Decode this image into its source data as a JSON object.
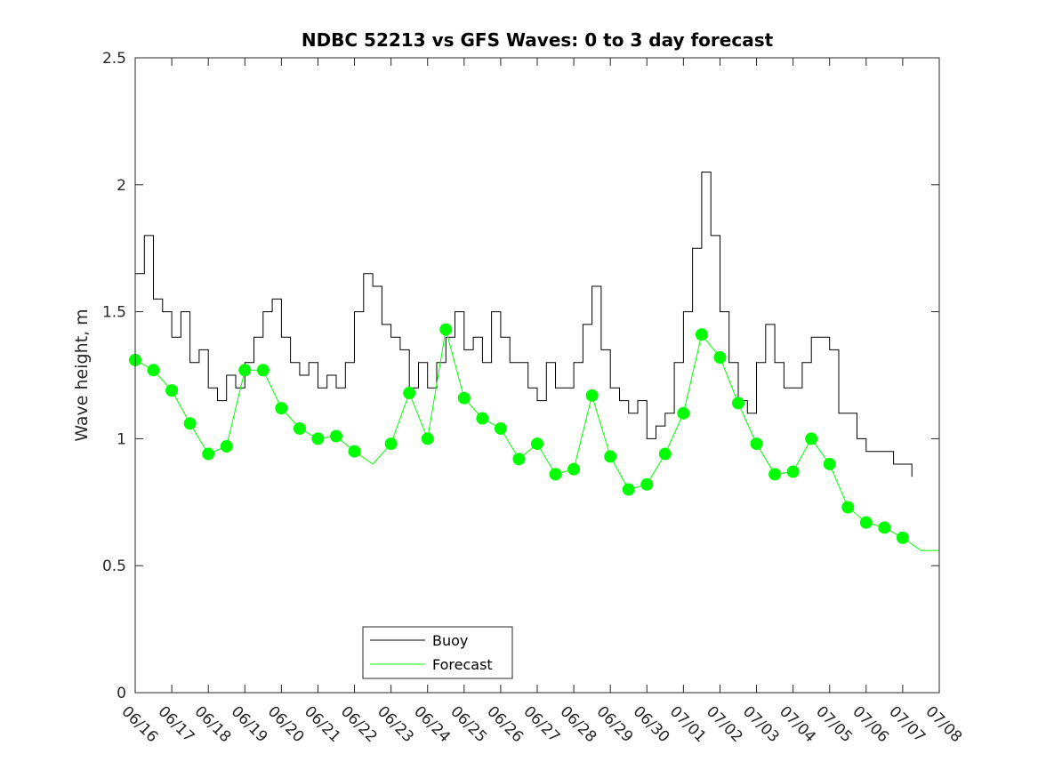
{
  "chart_data": {
    "type": "line",
    "title": "NDBC 52213 vs GFS Waves: 0 to 3 day forecast",
    "xlabel": "",
    "ylabel": "Wave height, m",
    "x_range_days": [
      "06/16",
      "07/08"
    ],
    "ylim": [
      0,
      2.5
    ],
    "yticks": [
      0,
      0.5,
      1,
      1.5,
      2,
      2.5
    ],
    "ytick_labels": [
      "0",
      "0.5",
      "1",
      "1.5",
      "2",
      "2.5"
    ],
    "xtick_labels": [
      "06/16",
      "06/17",
      "06/18",
      "06/19",
      "06/20",
      "06/21",
      "06/22",
      "06/23",
      "06/24",
      "06/25",
      "06/26",
      "06/27",
      "06/28",
      "06/29",
      "06/30",
      "07/01",
      "07/02",
      "07/03",
      "07/04",
      "07/05",
      "07/06",
      "07/07",
      "07/08"
    ],
    "grid": false,
    "legend_position": "bottom-left",
    "colors": {
      "buoy": "#000000",
      "forecast": "#00ff00"
    },
    "series": [
      {
        "name": "Buoy",
        "kind": "line",
        "x": [
          "06/16 00:00",
          "06/16 06:00",
          "06/16 12:00",
          "06/16 18:00",
          "06/17 00:00",
          "06/17 06:00",
          "06/17 12:00",
          "06/17 18:00",
          "06/18 00:00",
          "06/18 06:00",
          "06/18 12:00",
          "06/18 18:00",
          "06/19 00:00",
          "06/19 06:00",
          "06/19 12:00",
          "06/19 18:00",
          "06/20 00:00",
          "06/20 06:00",
          "06/20 12:00",
          "06/20 18:00",
          "06/21 00:00",
          "06/21 06:00",
          "06/21 12:00",
          "06/21 18:00",
          "06/22 00:00",
          "06/22 06:00",
          "06/22 12:00",
          "06/22 18:00",
          "06/23 00:00",
          "06/23 06:00",
          "06/23 12:00",
          "06/23 18:00",
          "06/24 00:00",
          "06/24 06:00",
          "06/24 12:00",
          "06/24 18:00",
          "06/25 00:00",
          "06/25 06:00",
          "06/25 12:00",
          "06/25 18:00",
          "06/26 00:00",
          "06/26 06:00",
          "06/26 12:00",
          "06/26 18:00",
          "06/27 00:00",
          "06/27 06:00",
          "06/27 12:00",
          "06/27 18:00",
          "06/28 00:00",
          "06/28 06:00",
          "06/28 12:00",
          "06/28 18:00",
          "06/29 00:00",
          "06/29 06:00",
          "06/29 12:00",
          "06/29 18:00",
          "06/30 00:00",
          "06/30 06:00",
          "06/30 12:00",
          "06/30 18:00",
          "07/01 00:00",
          "07/01 06:00",
          "07/01 12:00",
          "07/01 18:00",
          "07/02 00:00",
          "07/02 06:00",
          "07/02 12:00",
          "07/02 18:00",
          "07/03 00:00",
          "07/03 06:00",
          "07/03 12:00",
          "07/03 18:00",
          "07/04 00:00",
          "07/04 06:00",
          "07/04 12:00",
          "07/04 18:00",
          "07/05 00:00",
          "07/05 06:00",
          "07/05 12:00",
          "07/05 18:00",
          "07/06 00:00",
          "07/06 06:00",
          "07/06 12:00",
          "07/06 18:00",
          "07/07 00:00",
          "07/07 06:00"
        ],
        "y": [
          1.65,
          1.8,
          1.55,
          1.5,
          1.4,
          1.5,
          1.3,
          1.35,
          1.2,
          1.15,
          1.25,
          1.2,
          1.3,
          1.4,
          1.5,
          1.55,
          1.4,
          1.3,
          1.25,
          1.3,
          1.2,
          1.25,
          1.2,
          1.3,
          1.5,
          1.65,
          1.6,
          1.45,
          1.4,
          1.35,
          1.2,
          1.3,
          1.2,
          1.3,
          1.4,
          1.5,
          1.35,
          1.4,
          1.3,
          1.5,
          1.4,
          1.3,
          1.3,
          1.2,
          1.15,
          1.3,
          1.2,
          1.2,
          1.3,
          1.45,
          1.6,
          1.35,
          1.2,
          1.15,
          1.1,
          1.15,
          1.0,
          1.05,
          1.1,
          1.3,
          1.5,
          1.75,
          2.05,
          1.8,
          1.5,
          1.3,
          1.15,
          1.1,
          1.3,
          1.45,
          1.3,
          1.2,
          1.2,
          1.3,
          1.4,
          1.4,
          1.35,
          1.1,
          1.1,
          1.0,
          0.95,
          0.95,
          0.95,
          0.9,
          0.9,
          0.85
        ]
      },
      {
        "name": "Forecast",
        "kind": "line",
        "x": [
          "06/16 00:00",
          "06/16 12:00",
          "06/17 00:00",
          "06/17 12:00",
          "06/18 00:00",
          "06/18 12:00",
          "06/19 00:00",
          "06/19 12:00",
          "06/20 00:00",
          "06/20 12:00",
          "06/21 00:00",
          "06/21 12:00",
          "06/22 00:00",
          "06/22 12:00",
          "06/23 00:00",
          "06/23 12:00",
          "06/24 00:00",
          "06/24 12:00",
          "06/25 00:00",
          "06/25 12:00",
          "06/26 00:00",
          "06/26 12:00",
          "06/27 00:00",
          "06/27 12:00",
          "06/28 00:00",
          "06/28 12:00",
          "06/29 00:00",
          "06/29 12:00",
          "06/30 00:00",
          "06/30 12:00",
          "07/01 00:00",
          "07/01 12:00",
          "07/02 00:00",
          "07/02 12:00",
          "07/03 00:00",
          "07/03 12:00",
          "07/04 00:00",
          "07/04 12:00",
          "07/05 00:00",
          "07/05 12:00",
          "07/06 00:00",
          "07/06 12:00",
          "07/07 00:00",
          "07/07 12:00",
          "07/08 00:00"
        ],
        "y": [
          1.31,
          1.27,
          1.19,
          1.06,
          0.94,
          0.97,
          1.27,
          1.27,
          1.12,
          1.04,
          1.0,
          1.01,
          0.95,
          0.9,
          0.98,
          1.18,
          1.0,
          1.43,
          1.16,
          1.08,
          1.04,
          0.92,
          0.98,
          0.86,
          0.88,
          1.17,
          0.93,
          0.8,
          0.82,
          0.94,
          1.1,
          1.41,
          1.32,
          1.14,
          0.98,
          0.86,
          0.87,
          1.0,
          0.9,
          0.73,
          0.67,
          0.65,
          0.61,
          0.56,
          0.56
        ]
      }
    ],
    "markers": {
      "series": "Forecast",
      "x": [
        "06/16 00:00",
        "06/16 12:00",
        "06/17 00:00",
        "06/17 12:00",
        "06/18 00:00",
        "06/18 12:00",
        "06/19 00:00",
        "06/19 12:00",
        "06/20 00:00",
        "06/20 12:00",
        "06/21 00:00",
        "06/21 12:00",
        "06/22 00:00",
        "06/23 00:00",
        "06/23 12:00",
        "06/24 00:00",
        "06/24 12:00",
        "06/25 00:00",
        "06/25 12:00",
        "06/26 00:00",
        "06/26 12:00",
        "06/27 00:00",
        "06/27 12:00",
        "06/28 00:00",
        "06/28 12:00",
        "06/29 00:00",
        "06/29 12:00",
        "06/30 00:00",
        "06/30 12:00",
        "07/01 00:00",
        "07/01 12:00",
        "07/02 00:00",
        "07/02 12:00",
        "07/03 00:00",
        "07/03 12:00",
        "07/04 00:00",
        "07/04 12:00",
        "07/05 00:00",
        "07/05 12:00",
        "07/06 00:00",
        "07/06 12:00",
        "07/07 00:00"
      ],
      "y": [
        1.31,
        1.27,
        1.19,
        1.06,
        0.94,
        0.97,
        1.27,
        1.27,
        1.12,
        1.04,
        1.0,
        1.01,
        0.95,
        0.98,
        1.18,
        1.0,
        1.43,
        1.16,
        1.08,
        1.04,
        0.92,
        0.98,
        0.86,
        0.88,
        1.17,
        0.93,
        0.8,
        0.82,
        0.94,
        1.1,
        1.41,
        1.32,
        1.14,
        0.98,
        0.86,
        0.87,
        1.0,
        0.9,
        0.73,
        0.67,
        0.65,
        0.61
      ]
    }
  },
  "legend": {
    "items": [
      {
        "label": "Buoy"
      },
      {
        "label": "Forecast"
      }
    ]
  }
}
